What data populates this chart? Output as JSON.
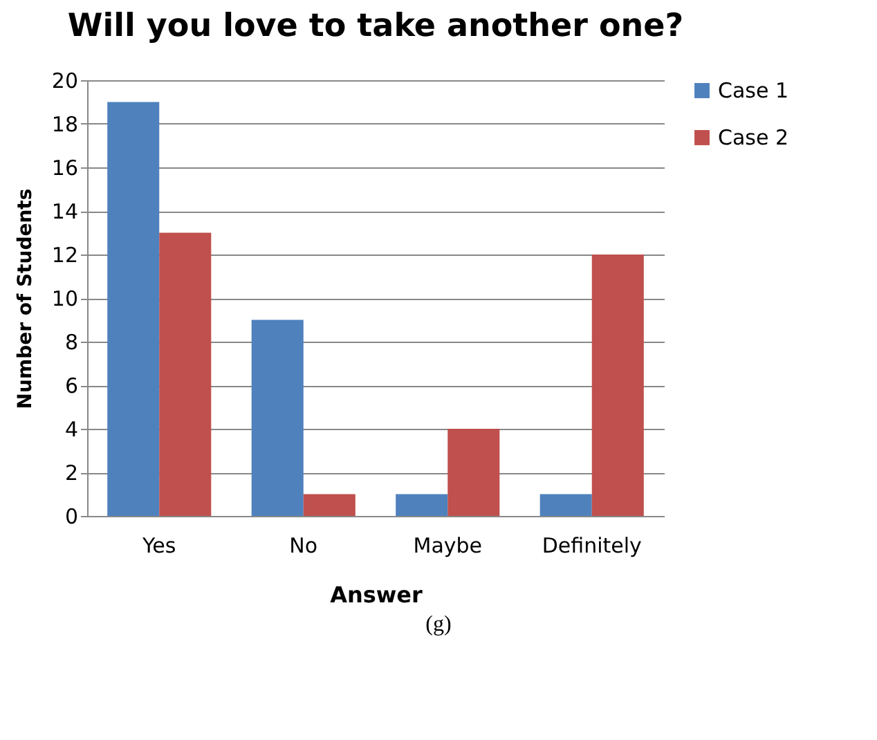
{
  "chart_data": {
    "type": "bar",
    "title": "Will you love to take another one?",
    "xlabel": "Answer",
    "ylabel": "Number of Students",
    "categories": [
      "Yes",
      "No",
      "Maybe",
      "Definitely"
    ],
    "series": [
      {
        "name": "Case 1",
        "color": "#4f81bd",
        "values": [
          19,
          9,
          1,
          1
        ]
      },
      {
        "name": "Case 2",
        "color": "#c0504d",
        "values": [
          13,
          1,
          4,
          12
        ]
      }
    ],
    "ylim": [
      0,
      20
    ],
    "yticks": [
      0,
      2,
      4,
      6,
      8,
      10,
      12,
      14,
      16,
      18,
      20
    ],
    "grid": "y",
    "legend": "right",
    "annotations": [
      "(g)"
    ]
  }
}
